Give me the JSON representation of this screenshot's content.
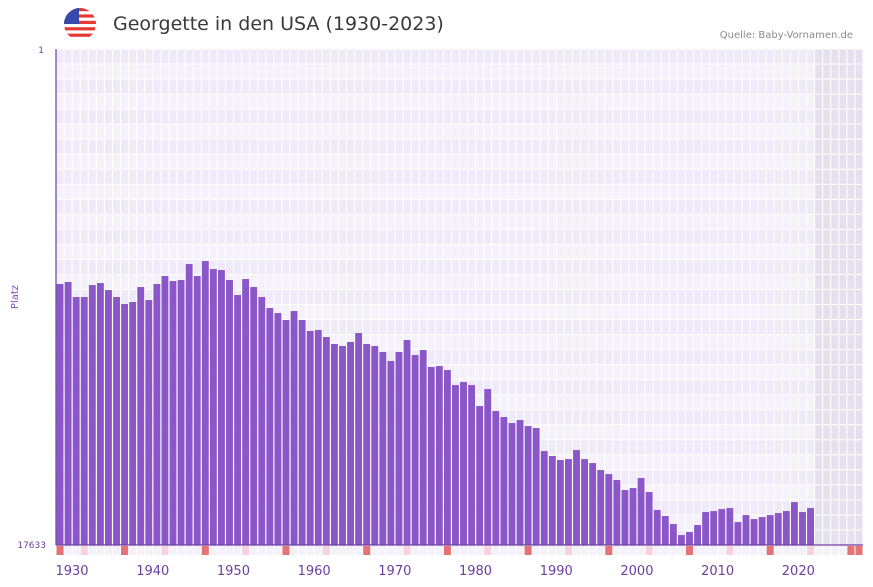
{
  "header": {
    "title": "Georgette in den USA (1930-2023)",
    "source": "Quelle: Baby-Vornamen.de",
    "flag_icon": "us-flag-icon"
  },
  "colors": {
    "bar": "#8a56c8",
    "axis": "#6a3fa0",
    "grid_bg_a": "#efeaf8",
    "grid_bg_b": "#f4f1fb",
    "future_bg": "#e4e0ee",
    "decade_marker": "#e57373",
    "half_decade_marker": "#f6d3dc"
  },
  "chart_data": {
    "type": "bar",
    "title": "Georgette in den USA (1930-2023)",
    "xlabel": "",
    "ylabel": "Platz",
    "y_axis_inverted": true,
    "ylim": [
      1,
      17633
    ],
    "xlim": [
      1930,
      2029
    ],
    "y_tick_labels": [
      "1",
      "17633"
    ],
    "x_tick_labels": [
      "1930",
      "1940",
      "1950",
      "1960",
      "1970",
      "1980",
      "1990",
      "2000",
      "2010",
      "2020"
    ],
    "grid": true,
    "legend": "none",
    "x": [
      1930,
      1931,
      1932,
      1933,
      1934,
      1935,
      1936,
      1937,
      1938,
      1939,
      1940,
      1941,
      1942,
      1943,
      1944,
      1945,
      1946,
      1947,
      1948,
      1949,
      1950,
      1951,
      1952,
      1953,
      1954,
      1955,
      1956,
      1957,
      1958,
      1959,
      1960,
      1961,
      1962,
      1963,
      1964,
      1965,
      1966,
      1967,
      1968,
      1969,
      1970,
      1971,
      1972,
      1973,
      1974,
      1975,
      1976,
      1977,
      1978,
      1979,
      1980,
      1981,
      1982,
      1983,
      1984,
      1985,
      1986,
      1987,
      1988,
      1989,
      1990,
      1991,
      1992,
      1993,
      1994,
      1995,
      1996,
      1997,
      1998,
      1999,
      2000,
      2001,
      2002,
      2003,
      2004,
      2005,
      2006,
      2007,
      2008,
      2009,
      2010,
      2011,
      2012,
      2013,
      2014,
      2015,
      2016,
      2017,
      2018,
      2019,
      2020,
      2021,
      2022,
      2023
    ],
    "values": [
      8356,
      8285,
      8818,
      8818,
      8392,
      8321,
      8570,
      8818,
      9067,
      8996,
      8463,
      8925,
      8356,
      8072,
      8250,
      8214,
      7645,
      8072,
      7539,
      7823,
      7858,
      8214,
      8747,
      8178,
      8463,
      8818,
      9209,
      9387,
      9635,
      9316,
      9635,
      10026,
      9991,
      10240,
      10489,
      10560,
      10417,
      10097,
      10489,
      10560,
      10773,
      11093,
      10773,
      10346,
      10880,
      10702,
      11306,
      11271,
      11413,
      11947,
      11840,
      11947,
      12693,
      12089,
      12871,
      13084,
      13298,
      13191,
      13404,
      13475,
      14293,
      14471,
      14613,
      14578,
      14258,
      14578,
      14720,
      14969,
      15111,
      15324,
      15680,
      15609,
      15253,
      15751,
      16391,
      16604,
      16889,
      17280,
      17173,
      16924,
      16462,
      16427,
      16356,
      16320,
      16818,
      16569,
      16711,
      16640,
      16569,
      16498,
      16427,
      16107,
      16462,
      16320
    ]
  }
}
